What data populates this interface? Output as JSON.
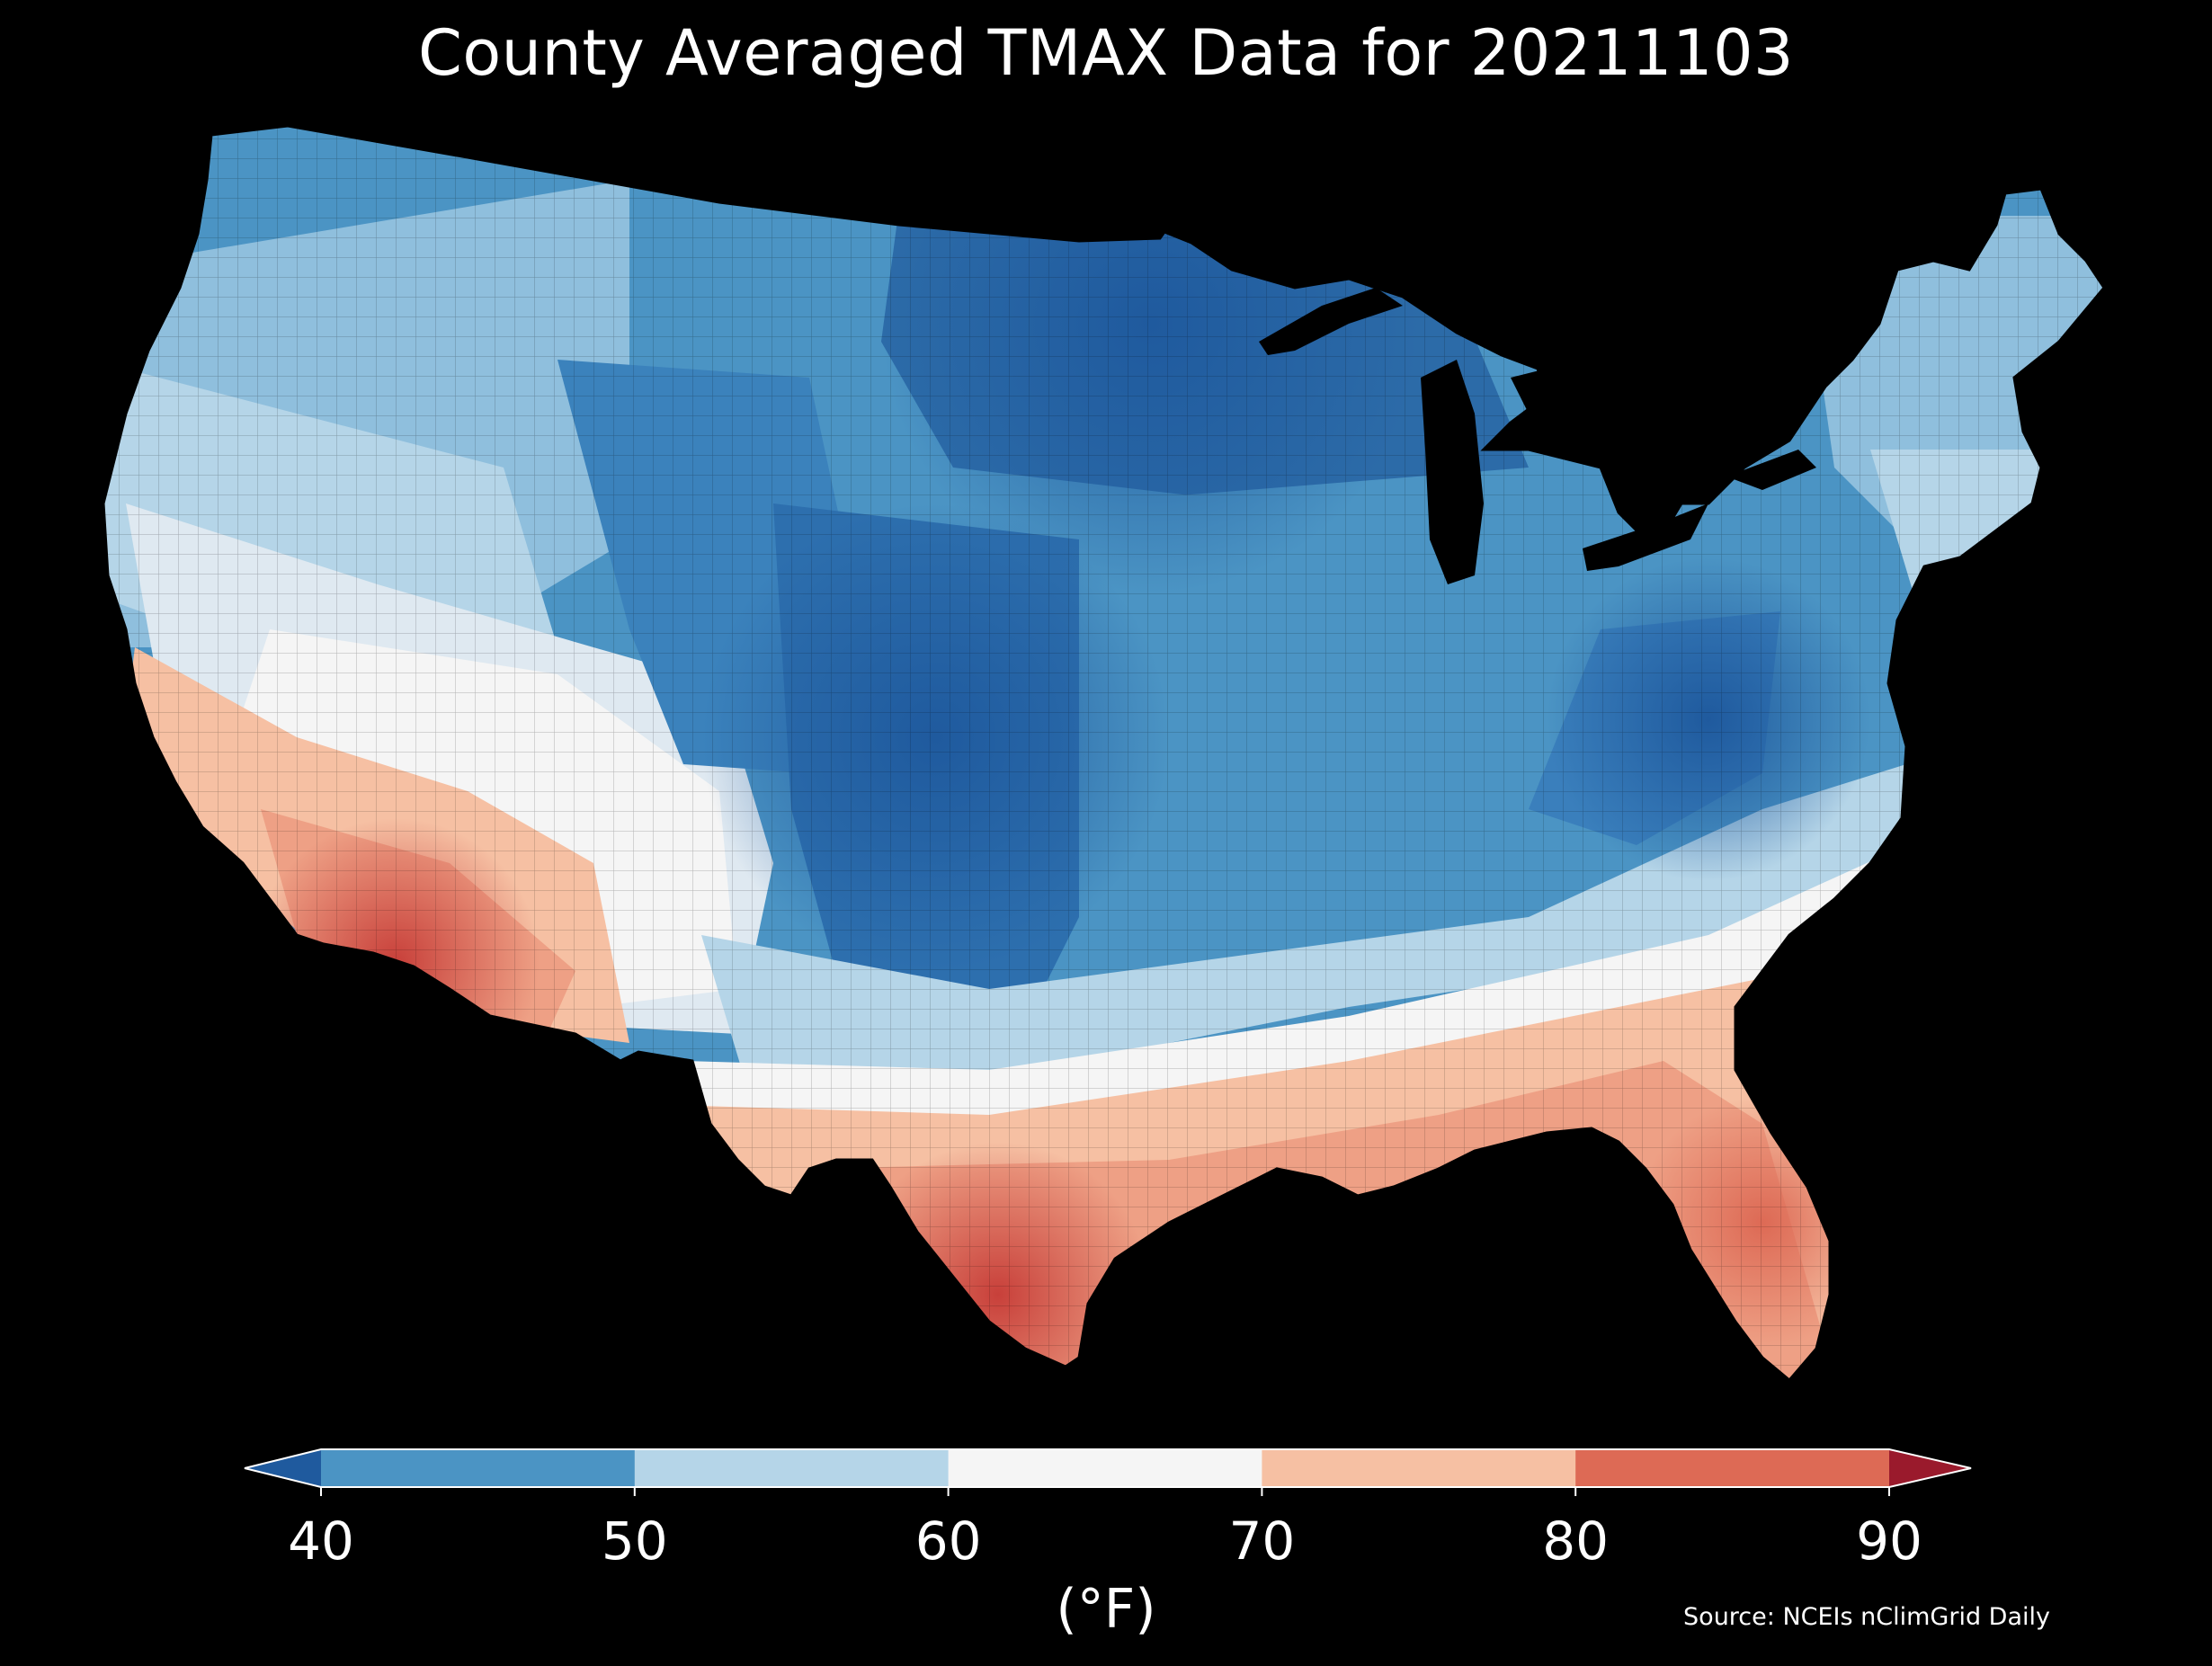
{
  "title": "County Averaged TMAX Data for 20211103",
  "legend": {
    "unit": "(°F)",
    "ticks": [
      "40",
      "50",
      "60",
      "70",
      "80",
      "90"
    ],
    "bins": [
      {
        "range": "<40",
        "color": "#1f5a9e"
      },
      {
        "range": "40-50",
        "color": "#4b94c4"
      },
      {
        "range": "50-60",
        "color": "#b5d5e8"
      },
      {
        "range": "60-70",
        "color": "#f5f5f5"
      },
      {
        "range": "70-80",
        "color": "#f6c0a3"
      },
      {
        "range": "80-90",
        "color": "#dd6a55"
      },
      {
        "range": ">90",
        "color": "#9a1a2c"
      }
    ]
  },
  "source": "Source: NCEIs nClimGrid Daily",
  "map": {
    "region": "Contiguous United States",
    "variable": "TMAX",
    "date": "20211103",
    "colormap": "RdBu_r"
  },
  "colors": {
    "background": "#000000",
    "text": "#ffffff",
    "cold_deep": "#1f5a9e",
    "cold": "#4b94c4",
    "cool": "#b5d5e8",
    "neutral": "#f5f5f5",
    "warm": "#f6c0a3",
    "hot": "#dd6a55",
    "hottest": "#c8403a"
  }
}
